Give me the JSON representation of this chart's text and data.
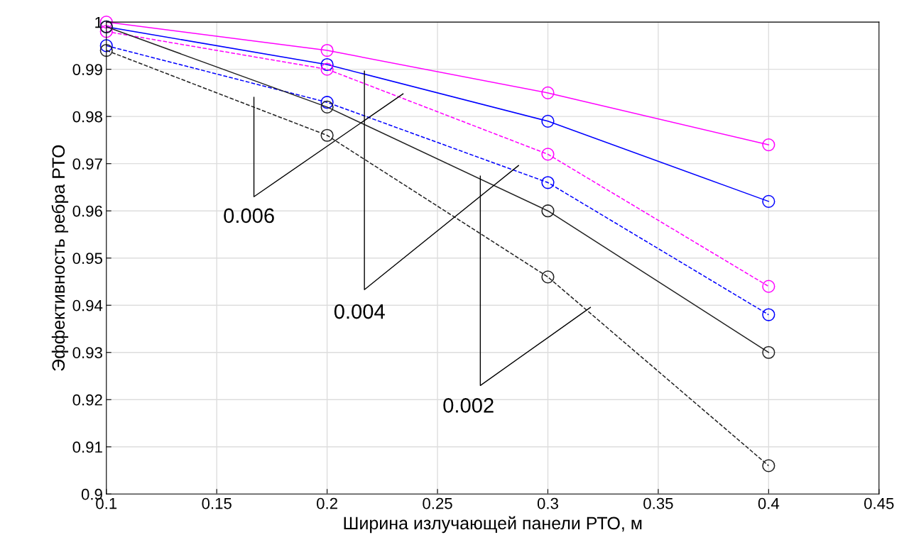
{
  "chart_data": {
    "type": "line",
    "xlabel": "Ширина излучающей панели РТО, м",
    "ylabel": "Эффективность ребра РТО",
    "x": [
      0.1,
      0.2,
      0.3,
      0.4
    ],
    "series": [
      {
        "color": "#ff00ff",
        "line_style": "solid",
        "values": [
          1.0,
          0.994,
          0.985,
          0.974
        ]
      },
      {
        "color": "#0000ff",
        "line_style": "solid",
        "values": [
          0.999,
          0.991,
          0.979,
          0.962
        ]
      },
      {
        "color": "#ff00ff",
        "line_style": "dashed",
        "values": [
          0.998,
          0.99,
          0.972,
          0.944
        ]
      },
      {
        "color": "#0000ff",
        "line_style": "dashed",
        "values": [
          0.995,
          0.983,
          0.966,
          0.938
        ]
      },
      {
        "color": "#222222",
        "line_style": "solid",
        "values": [
          0.999,
          0.982,
          0.96,
          0.93
        ]
      },
      {
        "color": "#222222",
        "line_style": "dashed",
        "values": [
          0.994,
          0.976,
          0.946,
          0.906
        ]
      }
    ],
    "marker": "circle",
    "grid": true,
    "xlim": [
      0.1,
      0.45
    ],
    "xticks": [
      0.1,
      0.15,
      0.2,
      0.25,
      0.3,
      0.35,
      0.4,
      0.45
    ],
    "ylim": [
      0.9,
      1.0
    ],
    "yticks": [
      0.9,
      0.91,
      0.92,
      0.93,
      0.94,
      0.95,
      0.96,
      0.97,
      0.98,
      0.99,
      1
    ],
    "annotations": [
      "0.006",
      "0.004",
      "0.002"
    ]
  }
}
